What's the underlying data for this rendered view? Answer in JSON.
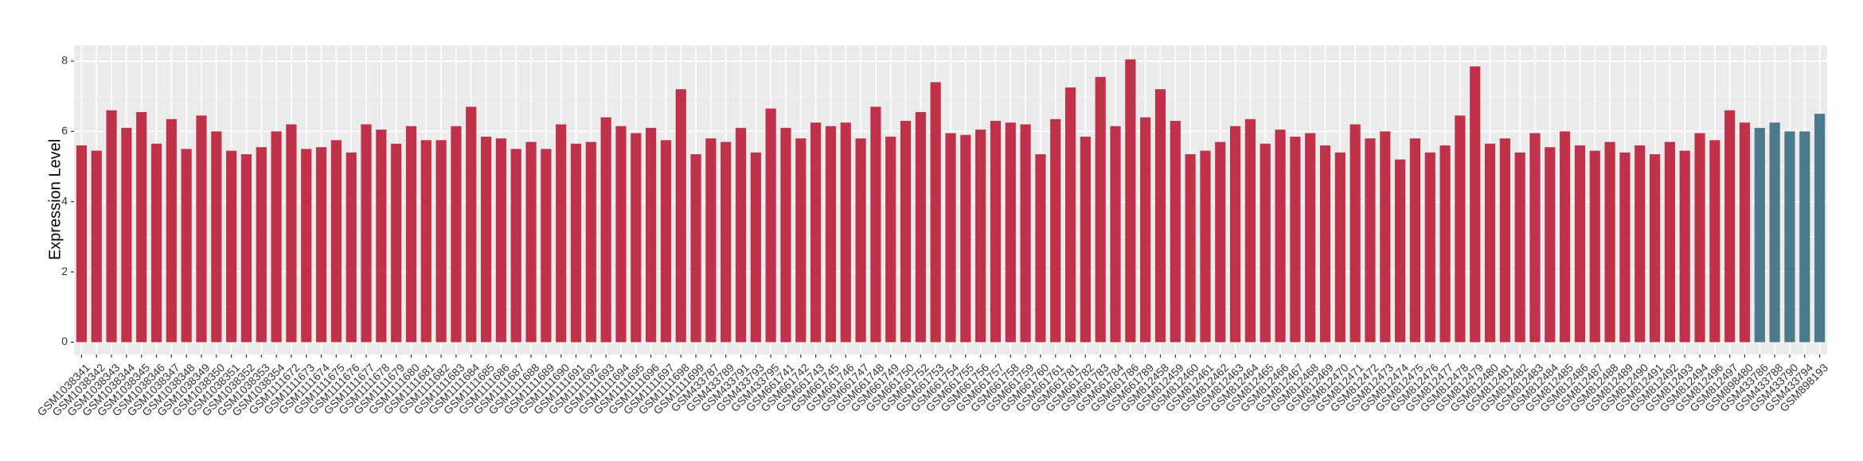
{
  "chart_data": {
    "type": "bar",
    "y_label": "Expression Level",
    "categories": [
      "GSM1038341",
      "GSM1038342",
      "GSM1038343",
      "GSM1038344",
      "GSM1038345",
      "GSM1038346",
      "GSM1038347",
      "GSM1038348",
      "GSM1038349",
      "GSM1038350",
      "GSM1038351",
      "GSM1038352",
      "GSM1038353",
      "GSM1038354",
      "GSM1111672",
      "GSM1111673",
      "GSM1111674",
      "GSM1111675",
      "GSM1111676",
      "GSM1111677",
      "GSM1111678",
      "GSM1111679",
      "GSM1111680",
      "GSM1111681",
      "GSM1111682",
      "GSM1111683",
      "GSM1111684",
      "GSM1111685",
      "GSM1111686",
      "GSM1111687",
      "GSM1111688",
      "GSM1111689",
      "GSM1111690",
      "GSM1111691",
      "GSM1111692",
      "GSM1111693",
      "GSM1111694",
      "GSM1111695",
      "GSM1111696",
      "GSM1111697",
      "GSM1111698",
      "GSM1111699",
      "GSM433787",
      "GSM433789",
      "GSM433791",
      "GSM433793",
      "GSM433795",
      "GSM661741",
      "GSM661742",
      "GSM661743",
      "GSM661745",
      "GSM661746",
      "GSM661747",
      "GSM661748",
      "GSM661749",
      "GSM661750",
      "GSM661752",
      "GSM661753",
      "GSM661754",
      "GSM661755",
      "GSM661756",
      "GSM661757",
      "GSM661758",
      "GSM661759",
      "GSM661760",
      "GSM661761",
      "GSM661781",
      "GSM661782",
      "GSM661783",
      "GSM661784",
      "GSM661786",
      "GSM661789",
      "GSM812458",
      "GSM812459",
      "GSM812460",
      "GSM812461",
      "GSM812462",
      "GSM812463",
      "GSM812464",
      "GSM812465",
      "GSM812466",
      "GSM812467",
      "GSM812468",
      "GSM812469",
      "GSM812470",
      "GSM812471",
      "GSM812472",
      "GSM812473",
      "GSM812474",
      "GSM812475",
      "GSM812476",
      "GSM812477",
      "GSM812478",
      "GSM812479",
      "GSM812480",
      "GSM812481",
      "GSM812482",
      "GSM812483",
      "GSM812484",
      "GSM812485",
      "GSM812486",
      "GSM812487",
      "GSM812488",
      "GSM812489",
      "GSM812490",
      "GSM812491",
      "GSM812492",
      "GSM812493",
      "GSM812494",
      "GSM812496",
      "GSM812497",
      "GSM898480",
      "GSM433786",
      "GSM433788",
      "GSM433790",
      "GSM433794",
      "GSM898193"
    ],
    "values": [
      5.6,
      5.45,
      6.6,
      6.1,
      6.55,
      5.65,
      6.35,
      5.5,
      6.45,
      6.0,
      5.45,
      5.35,
      5.55,
      6.0,
      6.2,
      5.5,
      5.55,
      5.75,
      5.4,
      6.2,
      6.05,
      5.65,
      6.15,
      5.75,
      5.75,
      6.15,
      6.7,
      5.85,
      5.8,
      5.5,
      5.7,
      5.5,
      6.2,
      5.65,
      5.7,
      6.4,
      6.15,
      5.95,
      6.1,
      5.75,
      7.2,
      5.35,
      5.8,
      5.7,
      6.1,
      5.4,
      6.65,
      6.1,
      5.8,
      6.25,
      6.15,
      6.25,
      5.8,
      6.7,
      5.85,
      6.3,
      6.55,
      7.4,
      5.95,
      5.9,
      6.05,
      6.3,
      6.25,
      6.2,
      5.35,
      6.35,
      7.25,
      5.85,
      7.55,
      6.15,
      8.05,
      6.4,
      7.2,
      6.3,
      5.35,
      5.45,
      5.7,
      6.15,
      6.35,
      5.65,
      6.05,
      5.85,
      5.95,
      5.6,
      5.4,
      6.2,
      5.8,
      6.0,
      5.2,
      5.8,
      5.4,
      5.6,
      6.45,
      7.85,
      5.65,
      5.8,
      5.4,
      5.95,
      5.55,
      6.0,
      5.6,
      5.45,
      5.7,
      5.4,
      5.6,
      5.35,
      5.7,
      5.45,
      5.95,
      5.75,
      6.6,
      6.25,
      6.1,
      6.25,
      6.0,
      6.0,
      6.5
    ],
    "colors": [
      "#c0314a",
      "#c0314a",
      "#c0314a",
      "#c0314a",
      "#c0314a",
      "#c0314a",
      "#c0314a",
      "#c0314a",
      "#c0314a",
      "#c0314a",
      "#c0314a",
      "#c0314a",
      "#c0314a",
      "#c0314a",
      "#c0314a",
      "#c0314a",
      "#c0314a",
      "#c0314a",
      "#c0314a",
      "#c0314a",
      "#c0314a",
      "#c0314a",
      "#c0314a",
      "#c0314a",
      "#c0314a",
      "#c0314a",
      "#c0314a",
      "#c0314a",
      "#c0314a",
      "#c0314a",
      "#c0314a",
      "#c0314a",
      "#c0314a",
      "#c0314a",
      "#c0314a",
      "#c0314a",
      "#c0314a",
      "#c0314a",
      "#c0314a",
      "#c0314a",
      "#c0314a",
      "#c0314a",
      "#c0314a",
      "#c0314a",
      "#c0314a",
      "#c0314a",
      "#c0314a",
      "#c0314a",
      "#c0314a",
      "#c0314a",
      "#c0314a",
      "#c0314a",
      "#c0314a",
      "#c0314a",
      "#c0314a",
      "#c0314a",
      "#c0314a",
      "#c0314a",
      "#c0314a",
      "#c0314a",
      "#c0314a",
      "#c0314a",
      "#c0314a",
      "#c0314a",
      "#c0314a",
      "#c0314a",
      "#c0314a",
      "#c0314a",
      "#c0314a",
      "#c0314a",
      "#c0314a",
      "#c0314a",
      "#c0314a",
      "#c0314a",
      "#c0314a",
      "#c0314a",
      "#c0314a",
      "#c0314a",
      "#c0314a",
      "#c0314a",
      "#c0314a",
      "#c0314a",
      "#c0314a",
      "#c0314a",
      "#c0314a",
      "#c0314a",
      "#c0314a",
      "#c0314a",
      "#c0314a",
      "#c0314a",
      "#c0314a",
      "#c0314a",
      "#c0314a",
      "#c0314a",
      "#c0314a",
      "#c0314a",
      "#c0314a",
      "#c0314a",
      "#c0314a",
      "#c0314a",
      "#c0314a",
      "#c0314a",
      "#c0314a",
      "#c0314a",
      "#c0314a",
      "#c0314a",
      "#c0314a",
      "#c0314a",
      "#c0314a",
      "#c0314a",
      "#c0314a",
      "#c0314a",
      "#4a7a8c",
      "#4a7a8c",
      "#4a7a8c",
      "#4a7a8c",
      "#4a7a8c"
    ],
    "ylim": [
      -0.35,
      8.45
    ],
    "yticks": [
      0,
      2,
      4,
      6,
      8
    ],
    "grid": true
  }
}
